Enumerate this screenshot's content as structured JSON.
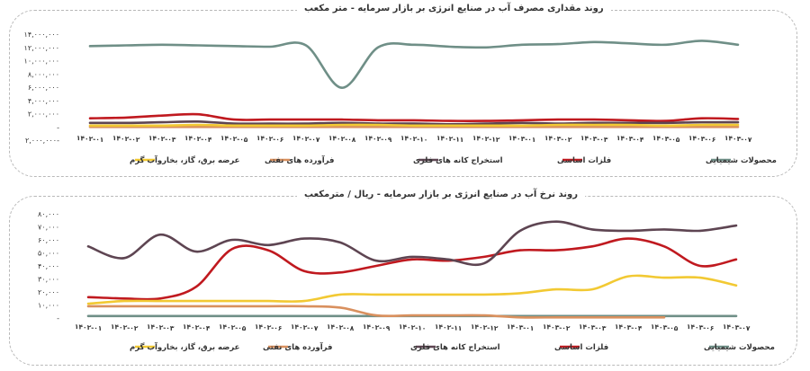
{
  "chart_data": [
    {
      "type": "line",
      "title": "روند مقداری مصرف آب در صنایع انرژی بر بازار سرمایه - متر مکعب",
      "categories": [
        "۱۴۰۲-۰۱",
        "۱۴۰۲-۰۲",
        "۱۴۰۲-۰۳",
        "۱۴۰۲-۰۴",
        "۱۴۰۲-۰۵",
        "۱۴۰۲-۰۶",
        "۱۴۰۲-۰۷",
        "۱۴۰۲-۰۸",
        "۱۴۰۲-۰۹",
        "۱۴۰۲-۱۰",
        "۱۴۰۲-۱۱",
        "۱۴۰۲-۱۲",
        "۱۴۰۳-۰۱",
        "۱۴۰۳-۰۲",
        "۱۴۰۳-۰۳",
        "۱۴۰۳-۰۴",
        "۱۴۰۳-۰۵",
        "۱۴۰۳-۰۶",
        "۱۴۰۳-۰۷"
      ],
      "yticks": [
        {
          "value": 14000000,
          "label": "۱۴,۰۰۰,۰۰۰"
        },
        {
          "value": 12000000,
          "label": "۱۲,۰۰۰,۰۰۰"
        },
        {
          "value": 10000000,
          "label": "۱۰,۰۰۰,۰۰۰"
        },
        {
          "value": 8000000,
          "label": "۸,۰۰۰,۰۰۰"
        },
        {
          "value": 6000000,
          "label": "۶,۰۰۰,۰۰۰"
        },
        {
          "value": 4000000,
          "label": "۴,۰۰۰,۰۰۰"
        },
        {
          "value": 2000000,
          "label": "۲,۰۰۰,۰۰۰"
        },
        {
          "value": 0,
          "label": "-"
        },
        {
          "value": -2000000,
          "label": "۲,۰۰۰,۰۰۰-"
        }
      ],
      "ylim": [
        -2000000,
        14000000
      ],
      "grid": false,
      "legend_position": "bottom",
      "series": [
        {
          "name": "محصولات شیمیایی",
          "color": "#6f8f87",
          "values": [
            12200000,
            12300000,
            12400000,
            12300000,
            12200000,
            12100000,
            12300000,
            5900000,
            12000000,
            12400000,
            12100000,
            12000000,
            12400000,
            12500000,
            12800000,
            12600000,
            12400000,
            13000000,
            12400000
          ]
        },
        {
          "name": "فلزات اساسی",
          "color": "#c0191f",
          "values": [
            1300000,
            1400000,
            1700000,
            1900000,
            1100000,
            1100000,
            1100000,
            1100000,
            1000000,
            1000000,
            900000,
            900000,
            1000000,
            1100000,
            1100000,
            1000000,
            900000,
            1300000,
            1200000
          ]
        },
        {
          "name": "استخراج کانه های فلزی",
          "color": "#5e4552",
          "values": [
            600000,
            600000,
            700000,
            800000,
            500000,
            500000,
            500000,
            600000,
            500000,
            500000,
            400000,
            500000,
            600000,
            500000,
            600000,
            600000,
            600000,
            700000,
            700000
          ]
        },
        {
          "name": "فرآورده های نفتی",
          "color": "#d9905e",
          "values": [
            0,
            0,
            0,
            0,
            0,
            0,
            0,
            0,
            0,
            0,
            0,
            0,
            0,
            0,
            0,
            0,
            0,
            0,
            0
          ]
        },
        {
          "name": "عرضه برق، گاز، بخاروآب گرم",
          "color": "#f2c933",
          "values": [
            200000,
            200000,
            200000,
            300000,
            200000,
            200000,
            200000,
            300000,
            300000,
            200000,
            200000,
            200000,
            200000,
            300000,
            300000,
            300000,
            200000,
            300000,
            300000
          ]
        }
      ]
    },
    {
      "type": "line",
      "title": "روند نرخ آب در صنایع انرژی بر بازار سرمایه - ریال / مترمکعب",
      "categories": [
        "۱۴۰۲-۰۱",
        "۱۴۰۲-۰۲",
        "۱۴۰۲-۰۳",
        "۱۴۰۲-۰۴",
        "۱۴۰۲-۰۵",
        "۱۴۰۲-۰۶",
        "۱۴۰۲-۰۷",
        "۱۴۰۲-۰۸",
        "۱۴۰۲-۰۹",
        "۱۴۰۲-۱۰",
        "۱۴۰۲-۱۱",
        "۱۴۰۲-۱۲",
        "۱۴۰۳-۰۱",
        "۱۴۰۳-۰۲",
        "۱۴۰۳-۰۳",
        "۱۴۰۳-۰۴",
        "۱۴۰۳-۰۵",
        "۱۴۰۳-۰۶",
        "۱۴۰۳-۰۷"
      ],
      "yticks": [
        {
          "value": 80000,
          "label": "۸۰,۰۰۰"
        },
        {
          "value": 70000,
          "label": "۷۰,۰۰۰"
        },
        {
          "value": 60000,
          "label": "۶۰,۰۰۰"
        },
        {
          "value": 50000,
          "label": "۵۰,۰۰۰"
        },
        {
          "value": 40000,
          "label": "۴۰,۰۰۰"
        },
        {
          "value": 30000,
          "label": "۳۰,۰۰۰"
        },
        {
          "value": 20000,
          "label": "۲۰,۰۰۰"
        },
        {
          "value": 10000,
          "label": "۱۰,۰۰۰"
        },
        {
          "value": 0,
          "label": "-"
        }
      ],
      "ylim": [
        0,
        80000
      ],
      "grid": false,
      "legend_position": "bottom",
      "series": [
        {
          "name": "محصولات شیمیایی",
          "color": "#6f8f87",
          "values": [
            1500,
            1500,
            1500,
            1500,
            1500,
            1500,
            1500,
            1500,
            1500,
            1500,
            1500,
            1500,
            1500,
            1500,
            1500,
            1500,
            1500,
            1500,
            1500
          ]
        },
        {
          "name": "فلزات اساسی",
          "color": "#c0191f",
          "values": [
            16000,
            15000,
            15000,
            24000,
            53000,
            52000,
            36000,
            35000,
            40000,
            45000,
            44000,
            47000,
            52000,
            52000,
            55000,
            61000,
            55000,
            40000,
            45000
          ]
        },
        {
          "name": "استخراج کانه های فلزی",
          "color": "#5e4552",
          "values": [
            55000,
            46000,
            64000,
            51000,
            60000,
            56000,
            61000,
            58000,
            44000,
            47000,
            45000,
            42000,
            67000,
            74000,
            68000,
            67000,
            68000,
            67000,
            71000
          ]
        },
        {
          "name": "فرآورده های نفتی",
          "color": "#d9905e",
          "values": [
            9000,
            9000,
            9000,
            9000,
            9000,
            9000,
            9000,
            8000,
            2000,
            2000,
            2000,
            2000,
            500,
            500,
            500,
            500,
            500,
            null,
            null
          ]
        },
        {
          "name": "عرضه برق، گاز، بخاروآب گرم",
          "color": "#f2c933",
          "values": [
            11000,
            13000,
            13000,
            13000,
            13000,
            13000,
            13000,
            18000,
            18000,
            18000,
            18000,
            18000,
            19000,
            22000,
            22000,
            32000,
            31000,
            31000,
            25000
          ]
        }
      ]
    }
  ]
}
